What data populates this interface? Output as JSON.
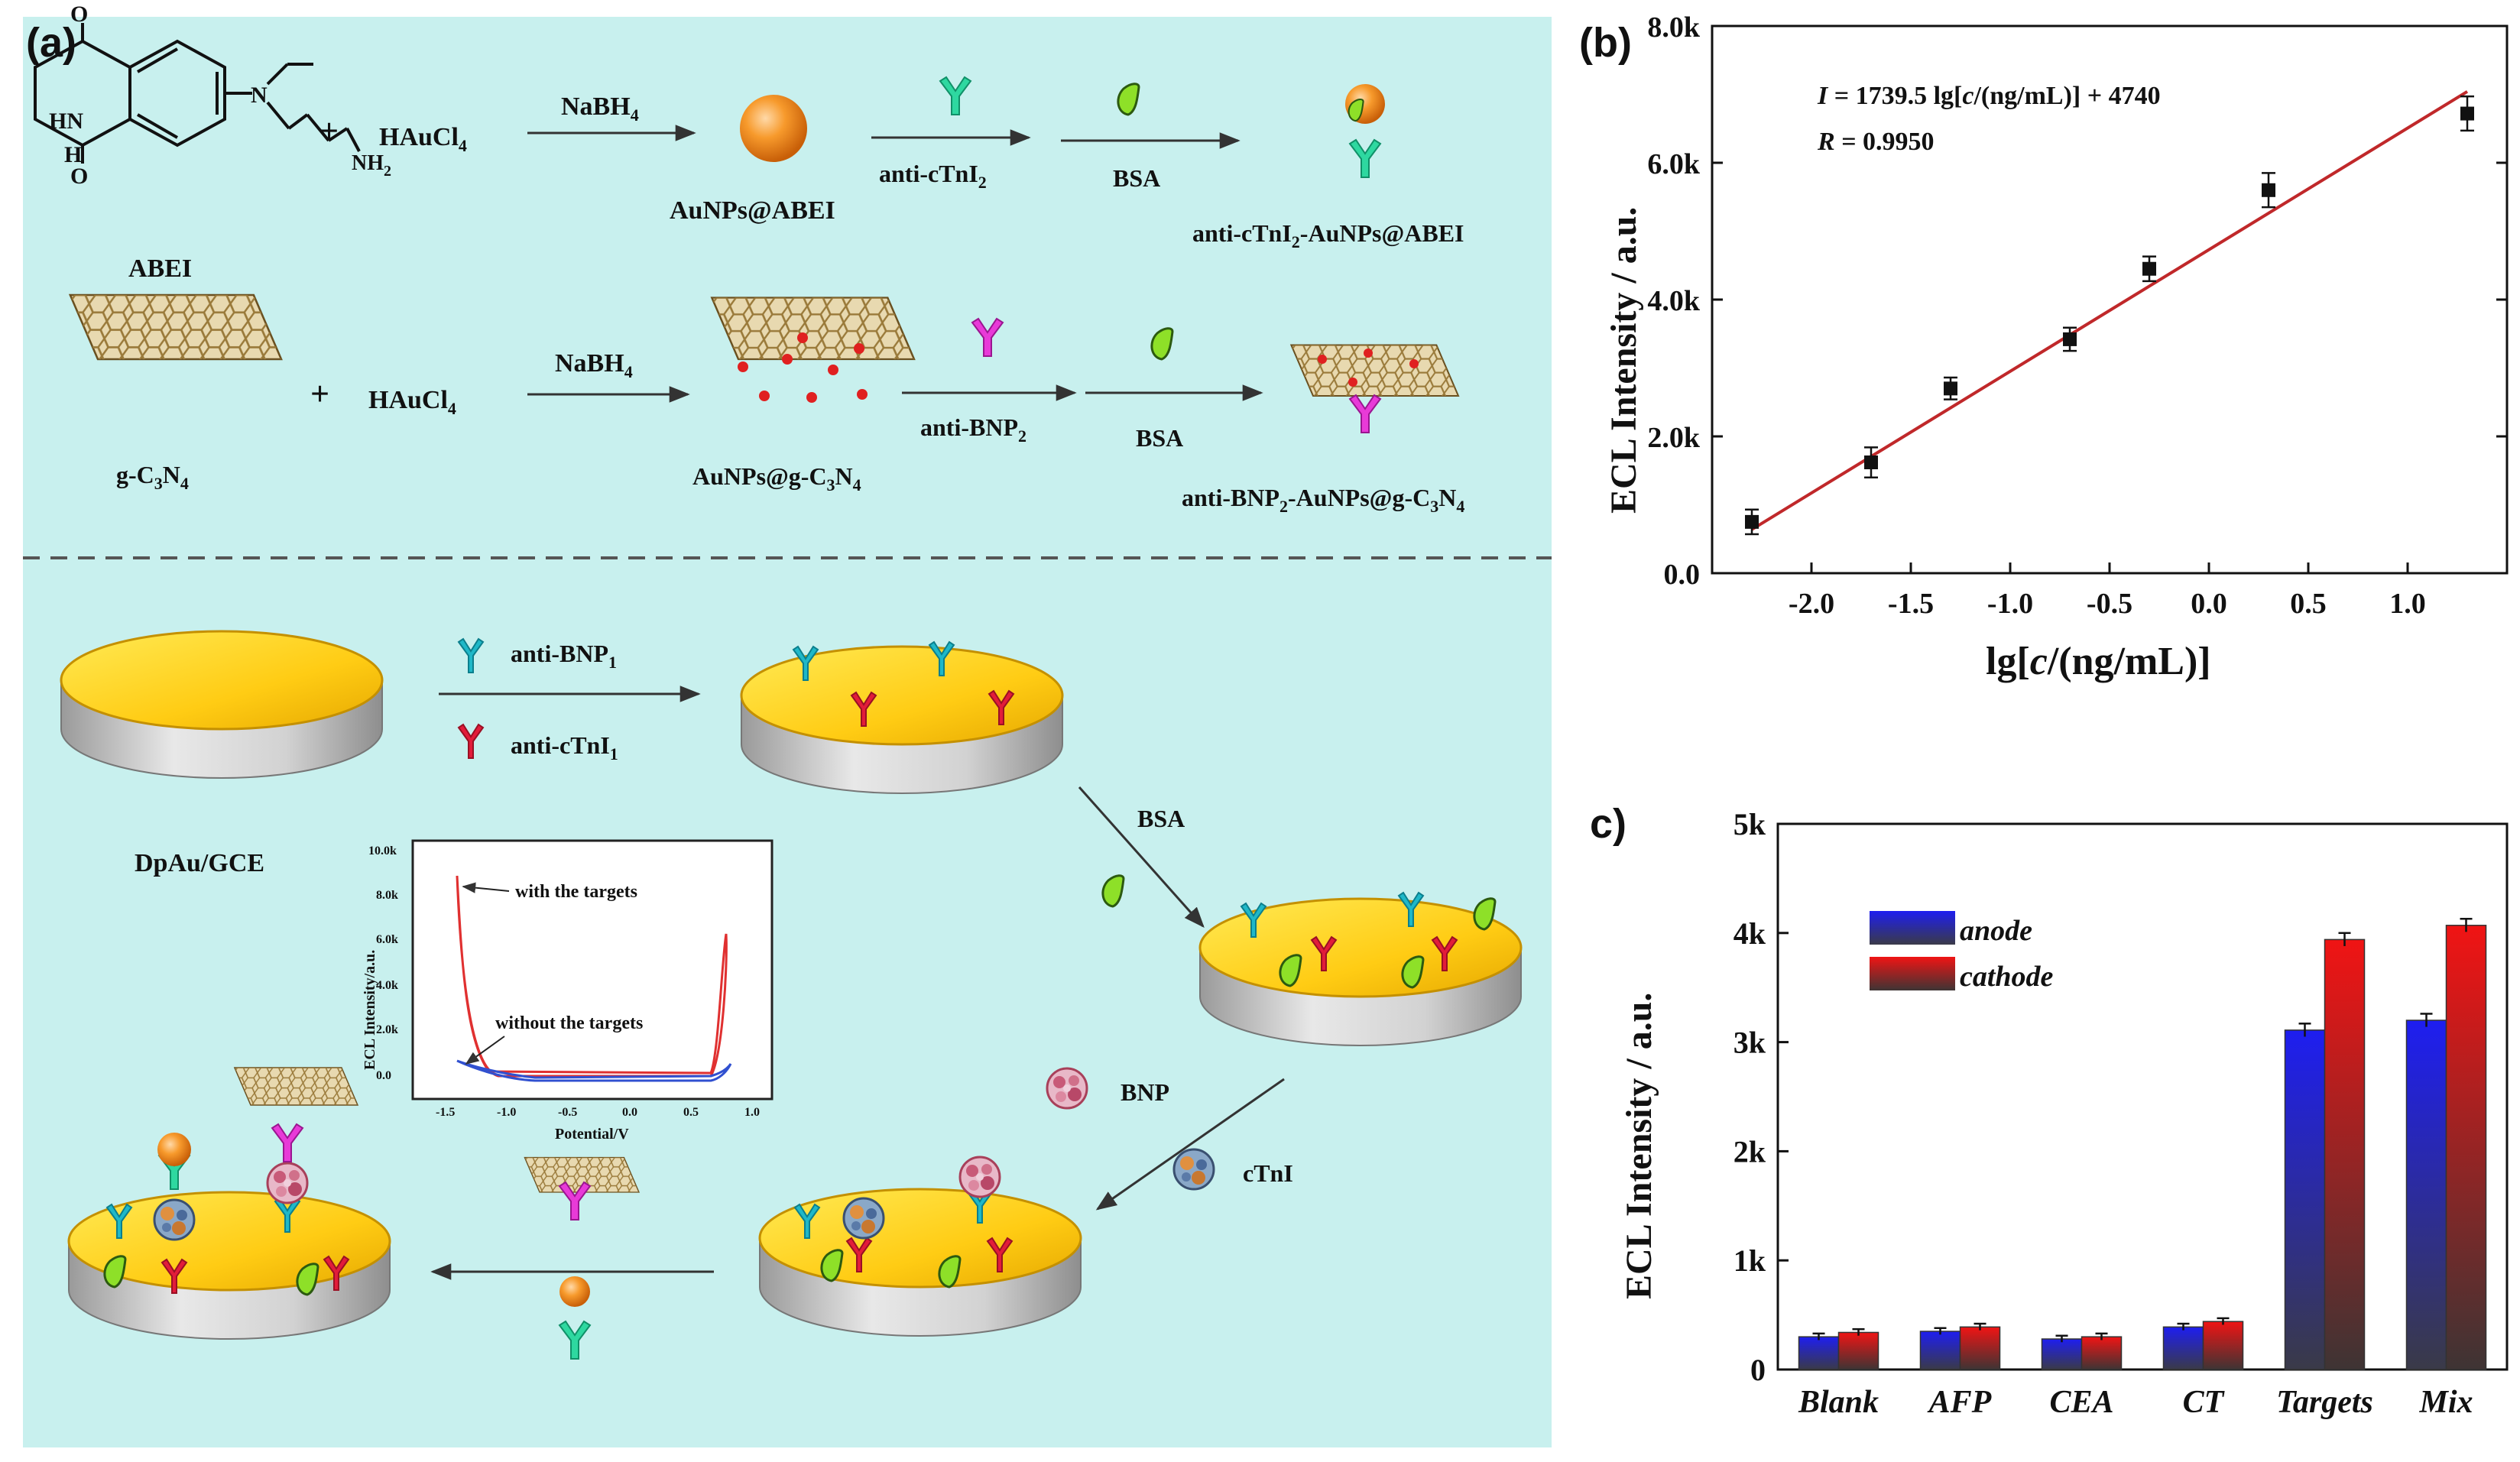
{
  "panel_a": {
    "label": "(a)",
    "row1": {
      "abei": "ABEI",
      "abei_atoms": {
        "o1": "O",
        "o2": "O",
        "hn": "HN",
        "h": "H",
        "nh2": "NH",
        "nh2_sub": "2",
        "n_amine": "N"
      },
      "plus": "+",
      "haucl4": "HAuCl",
      "haucl4_sub": "4",
      "nabh4": "NaBH",
      "nabh4_sub": "4",
      "aunps_abei": "AuNPs@ABEI",
      "anti_ctni2": "anti-cTnI",
      "anti_ctni2_sub": "2",
      "bsa": "BSA",
      "product": "anti-cTnI",
      "product_sub": "2",
      "product_rest": "-AuNPs@ABEI"
    },
    "row2": {
      "gc3n4_a": "g-C",
      "gc3n4_s1": "3",
      "gc3n4_b": "N",
      "gc3n4_s2": "4",
      "plus": "+",
      "haucl4": "HAuCl",
      "haucl4_sub": "4",
      "nabh4": "NaBH",
      "nabh4_sub": "4",
      "aunps_gc3n4_a": "AuNPs@g-C",
      "aunps_gc3n4_s1": "3",
      "aunps_gc3n4_b": "N",
      "aunps_gc3n4_s2": "4",
      "anti_bnp2": "anti-BNP",
      "anti_bnp2_sub": "2",
      "bsa": "BSA",
      "product_a": "anti-BNP",
      "product_s0": "2",
      "product_b": "-AuNPs@g-C",
      "product_s1": "3",
      "product_c": "N",
      "product_s2": "4"
    },
    "bottom": {
      "electrode": "DpAu/GCE",
      "anti_bnp1": "anti-BNP",
      "anti_bnp1_sub": "1",
      "anti_ctni1": "anti-cTnI",
      "anti_ctni1_sub": "1",
      "bsa": "BSA",
      "bnp": "BNP",
      "ctni": "cTnI"
    },
    "inset": {
      "ylabel": "ECL Intensity/a.u.",
      "xlabel": "Potential/V",
      "yticks": [
        "0.0",
        "2.0k",
        "4.0k",
        "6.0k",
        "8.0k",
        "10.0k"
      ],
      "xticks": [
        "-1.5",
        "-1.0",
        "-0.5",
        "0.0",
        "0.5",
        "1.0"
      ],
      "with": "with the targets",
      "without": "without the targets"
    }
  },
  "panel_b": {
    "label": "(b)",
    "equation_var": "I",
    "equation_mid": " = 1739.5 lg[",
    "equation_c": "c",
    "equation_end": "/(ng/mL)] + 4740",
    "r_var": "R",
    "r_val": " = 0.9950",
    "xlabel_a": "lg[",
    "xlabel_c": "c",
    "xlabel_b": "/(ng/mL)]",
    "ylabel": "ECL Intensity / a.u.",
    "yticks": [
      "0.0",
      "2.0k",
      "4.0k",
      "6.0k",
      "8.0k"
    ],
    "xticks": [
      "-2.0",
      "-1.5",
      "-1.0",
      "-0.5",
      "0.0",
      "0.5",
      "1.0"
    ]
  },
  "panel_c": {
    "label": "c)",
    "ylabel": "ECL Intensity / a.u.",
    "yticks": [
      "0",
      "1k",
      "2k",
      "3k",
      "4k",
      "5k"
    ],
    "legend_anode": "anode",
    "legend_cathode": "cathode"
  },
  "colors": {
    "panel_bg": "#c8f0ee",
    "gold": "#ffd21a",
    "fit_line": "#c0282a",
    "bar_anode": "#2020e6",
    "bar_cathode": "#e01818"
  },
  "chart_data": [
    {
      "type": "scatter",
      "title": "",
      "xlabel": "lg[c/(ng/mL)]",
      "ylabel": "ECL Intensity / a.u.",
      "xlim": [
        -2.5,
        1.5
      ],
      "ylim": [
        0,
        8000
      ],
      "x": [
        -2.3,
        -1.7,
        -1.3,
        -0.7,
        -0.3,
        0.3,
        1.3
      ],
      "y": [
        750,
        1620,
        2700,
        3420,
        4450,
        5600,
        6720
      ],
      "err": [
        180,
        220,
        160,
        170,
        180,
        250,
        250
      ],
      "fit": {
        "slope": 1739.5,
        "intercept": 4740,
        "R": 0.995
      }
    },
    {
      "type": "bar",
      "title": "",
      "xlabel": "",
      "ylabel": "ECL Intensity / a.u.",
      "ylim": [
        0,
        5000
      ],
      "categories": [
        "Blank",
        "AFP",
        "CEA",
        "CT",
        "Targets",
        "Mix"
      ],
      "series": [
        {
          "name": "anode",
          "values": [
            300,
            350,
            280,
            390,
            3110,
            3200
          ],
          "err": [
            30,
            30,
            30,
            30,
            60,
            60
          ]
        },
        {
          "name": "cathode",
          "values": [
            340,
            390,
            300,
            440,
            3940,
            4070
          ],
          "err": [
            30,
            30,
            30,
            30,
            60,
            60
          ]
        }
      ]
    }
  ]
}
